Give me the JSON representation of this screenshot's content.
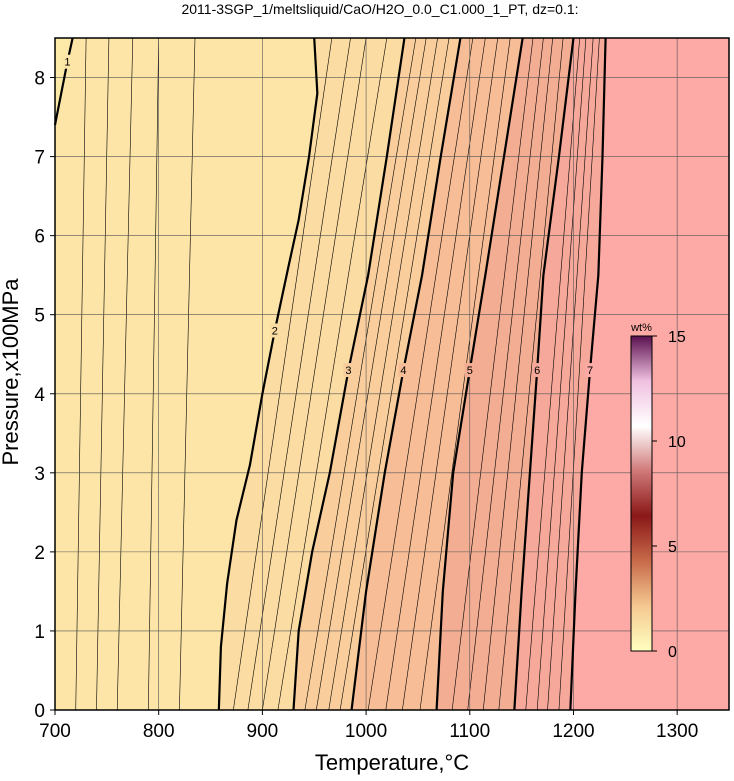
{
  "chart_data": {
    "type": "contour",
    "title": "2011-3SGP_1/meltsliquid/CaO/H2O_0.0_C1.000_1_PT, dz=0.1:",
    "x_label": "Temperature,°C",
    "y_label": "Pressure,x100MPa",
    "xlim": [
      700,
      1350
    ],
    "ylim": [
      0,
      8.5
    ],
    "xticks": [
      700,
      800,
      900,
      1000,
      1100,
      1200,
      1300
    ],
    "yticks": [
      0,
      1,
      2,
      3,
      4,
      5,
      6,
      7,
      8
    ],
    "grid": true,
    "background": "#fdeaa8",
    "contours": [
      {
        "level": 1,
        "color": "#fce5a6",
        "x": [
          700,
          706,
          712,
          717
        ],
        "y": [
          7.4,
          7.8,
          8.2,
          8.5
        ]
      },
      {
        "level": 2,
        "color": "#fbdca2",
        "x": [
          858,
          860,
          866,
          875,
          888,
          900,
          912,
          925,
          935,
          945,
          953,
          950
        ],
        "y": [
          0,
          0.8,
          1.6,
          2.4,
          3.1,
          4.0,
          4.8,
          5.6,
          6.2,
          7.0,
          7.8,
          8.5
        ]
      },
      {
        "level": 3,
        "color": "#f9ce9c",
        "x": [
          930,
          935,
          948,
          965,
          983,
          1002,
          1020,
          1037
        ],
        "y": [
          0,
          1.0,
          2.0,
          3.0,
          4.3,
          5.5,
          7.0,
          8.5
        ]
      },
      {
        "level": 4,
        "color": "#f6bd96",
        "x": [
          986,
          1000,
          1018,
          1036,
          1054,
          1072,
          1091
        ],
        "y": [
          0,
          1.5,
          3.0,
          4.3,
          5.5,
          7.0,
          8.5
        ]
      },
      {
        "level": 5,
        "color": "#f3ad92",
        "x": [
          1068,
          1074,
          1084,
          1100,
          1115,
          1133,
          1151
        ],
        "y": [
          0,
          1.5,
          3.0,
          4.3,
          5.5,
          7.0,
          8.5
        ]
      },
      {
        "level": 6,
        "color": "#f6a89a",
        "x": [
          1143,
          1150,
          1158,
          1165,
          1171,
          1186,
          1200
        ],
        "y": [
          0,
          1.5,
          3.0,
          4.3,
          5.5,
          7.0,
          8.5
        ]
      },
      {
        "level": 7,
        "color": "#fda9a5",
        "x": [
          1197,
          1202,
          1208,
          1216,
          1224,
          1228,
          1231
        ],
        "y": [
          0,
          1.5,
          3.0,
          4.3,
          5.5,
          7.0,
          8.5
        ]
      }
    ],
    "minor_contours": [
      {
        "x": [
          720,
          730
        ],
        "y": [
          0,
          8.5
        ]
      },
      {
        "x": [
          740,
          752
        ],
        "y": [
          0,
          8.5
        ]
      },
      {
        "x": [
          760,
          775
        ],
        "y": [
          0,
          8.5
        ]
      },
      {
        "x": [
          790,
          800
        ],
        "y": [
          0,
          8.5
        ]
      },
      {
        "x": [
          820,
          835
        ],
        "y": [
          0,
          8.5
        ]
      },
      {
        "x": [
          872,
          967
        ],
        "y": [
          0,
          8.5
        ]
      },
      {
        "x": [
          886,
          985
        ],
        "y": [
          0,
          8.5
        ]
      },
      {
        "x": [
          900,
          1000
        ],
        "y": [
          0,
          8.5
        ]
      },
      {
        "x": [
          915,
          1020
        ],
        "y": [
          0,
          8.5
        ]
      },
      {
        "x": [
          941,
          1048
        ],
        "y": [
          0,
          8.5
        ]
      },
      {
        "x": [
          952,
          1058
        ],
        "y": [
          0,
          8.5
        ]
      },
      {
        "x": [
          964,
          1069
        ],
        "y": [
          0,
          8.5
        ]
      },
      {
        "x": [
          975,
          1080
        ],
        "y": [
          0,
          8.5
        ]
      },
      {
        "x": [
          1002,
          1103
        ],
        "y": [
          0,
          8.5
        ]
      },
      {
        "x": [
          1019,
          1115
        ],
        "y": [
          0,
          8.5
        ]
      },
      {
        "x": [
          1035,
          1127
        ],
        "y": [
          0,
          8.5
        ]
      },
      {
        "x": [
          1052,
          1139
        ],
        "y": [
          0,
          8.5
        ]
      },
      {
        "x": [
          1083,
          1161
        ],
        "y": [
          0,
          8.5
        ]
      },
      {
        "x": [
          1098,
          1171
        ],
        "y": [
          0,
          8.5
        ]
      },
      {
        "x": [
          1113,
          1180
        ],
        "y": [
          0,
          8.5
        ]
      },
      {
        "x": [
          1128,
          1190
        ],
        "y": [
          0,
          8.5
        ]
      },
      {
        "x": [
          1154,
          1206
        ],
        "y": [
          0,
          8.5
        ]
      },
      {
        "x": [
          1165,
          1212
        ],
        "y": [
          0,
          8.5
        ]
      },
      {
        "x": [
          1175,
          1219
        ],
        "y": [
          0,
          8.5
        ]
      },
      {
        "x": [
          1186,
          1225
        ],
        "y": [
          0,
          8.5
        ]
      }
    ],
    "colorbar": {
      "label": "wt%",
      "lim": [
        0,
        15
      ],
      "ticks": [
        0,
        5,
        10,
        15
      ],
      "colors": [
        "#ffffc0",
        "#f5c890",
        "#c86a4a",
        "#8a1818",
        "#d07878",
        "#ffffff",
        "#f0c0e0",
        "#5a1050"
      ]
    }
  }
}
